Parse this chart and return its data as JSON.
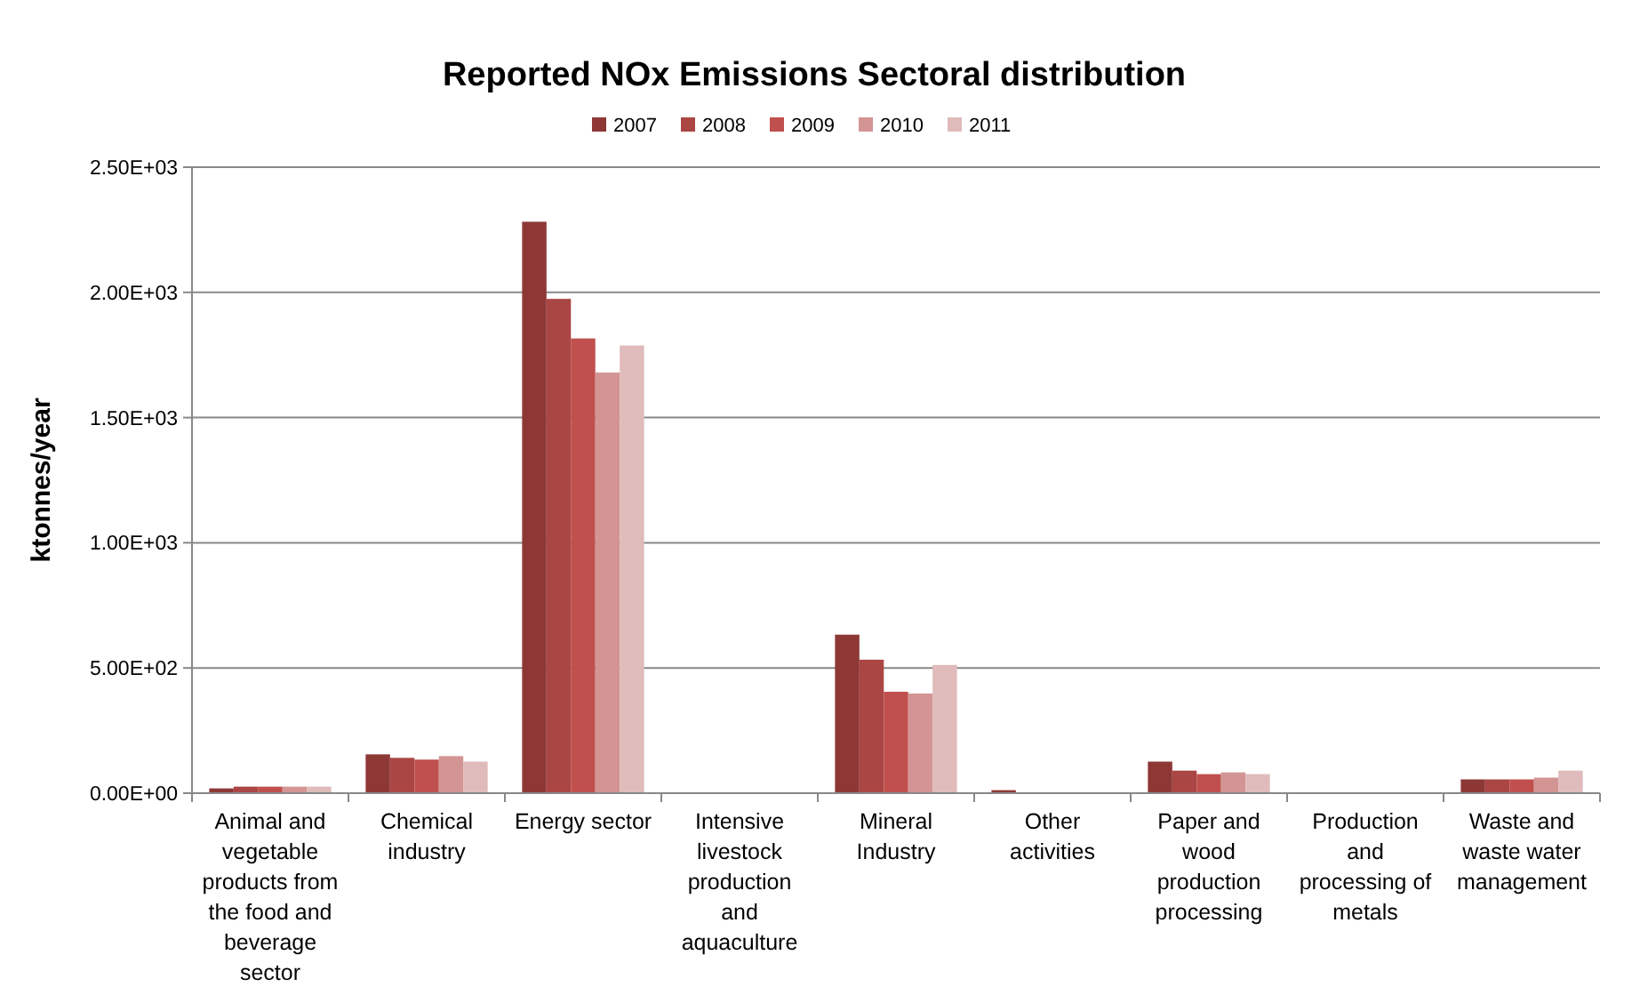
{
  "chart_data": {
    "type": "bar",
    "title": "Reported NOx Emissions Sectoral distribution",
    "ylabel": "ktonnes/year",
    "categories": [
      "Animal and vegetable products from the food and beverage sector",
      "Chemical industry",
      "Energy sector",
      "Intensive livestock production and aquaculture",
      "Mineral Industry",
      "Other activities",
      "Paper and wood production processing",
      "Production and processing of metals",
      "Waste and waste water management"
    ],
    "series": [
      {
        "name": "2007",
        "color": "#8e3836",
        "values": [
          19,
          155,
          2282,
          0,
          633,
          12,
          126,
          0,
          55
        ]
      },
      {
        "name": "2008",
        "color": "#aa4644",
        "values": [
          26,
          141,
          1974,
          0,
          533,
          null,
          90,
          0,
          55
        ]
      },
      {
        "name": "2009",
        "color": "#c0504d",
        "values": [
          26,
          134,
          1816,
          0,
          405,
          null,
          76,
          0,
          55
        ]
      },
      {
        "name": "2010",
        "color": "#d39593",
        "values": [
          26,
          148,
          1680,
          null,
          398,
          null,
          83,
          0,
          62
        ]
      },
      {
        "name": "2011",
        "color": "#e0bbbb",
        "values": [
          26,
          126,
          1788,
          0,
          512,
          null,
          76,
          0,
          90
        ]
      }
    ],
    "ylim": [
      0,
      2500
    ],
    "yticks": [
      {
        "value": 0,
        "label": "0.00E+00"
      },
      {
        "value": 500,
        "label": "5.00E+02"
      },
      {
        "value": 1000,
        "label": "1.00E+03"
      },
      {
        "value": 1500,
        "label": "1.50E+03"
      },
      {
        "value": 2000,
        "label": "2.00E+03"
      },
      {
        "value": 2500,
        "label": "2.50E+03"
      }
    ],
    "grid": "y",
    "legend": "top"
  }
}
